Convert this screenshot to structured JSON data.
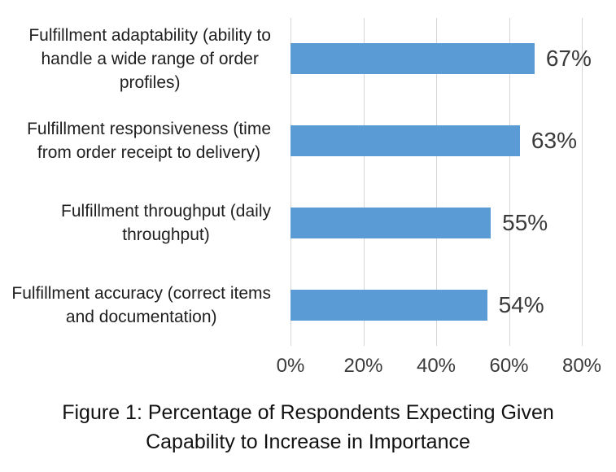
{
  "chart_data": {
    "type": "bar",
    "orientation": "horizontal",
    "title": "",
    "categories": [
      "Fulfillment adaptability (ability to handle a wide range of order profiles)",
      "Fulfillment responsiveness (time from order receipt to delivery)",
      "Fulfillment throughput (daily throughput)",
      "Fulfillment accuracy (correct items and documentation)"
    ],
    "category_display": [
      "Fulfillment adaptability (ability to\nhandle a wide range of order\nprofiles)",
      "Fulfillment responsiveness (time\nfrom order receipt to delivery)",
      "Fulfillment throughput (daily\nthroughput)",
      "Fulfillment accuracy (correct items\nand documentation)"
    ],
    "values": [
      67,
      63,
      55,
      54
    ],
    "data_labels": [
      "67%",
      "63%",
      "55%",
      "54%"
    ],
    "x_ticks": [
      "0%",
      "20%",
      "40%",
      "60%",
      "80%"
    ],
    "xlim": [
      0,
      80
    ],
    "grid": "vertical",
    "legend_position": "none",
    "bar_color": "#5b9bd5",
    "gridline_color": "#d6d6d6"
  },
  "caption": "Figure 1: Percentage of Respondents Expecting Given\nCapability to Increase in Importance"
}
